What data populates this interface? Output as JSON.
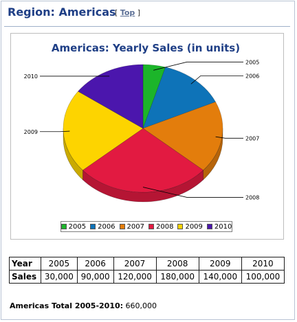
{
  "header": {
    "region_title": "Region: Americas",
    "top_link": "Top",
    "bracket_open": "[",
    "bracket_close": "]"
  },
  "chart_data": {
    "type": "pie",
    "title": "Americas: Yearly Sales (in units)",
    "categories": [
      "2005",
      "2006",
      "2007",
      "2008",
      "2009",
      "2010"
    ],
    "values": [
      30000,
      90000,
      120000,
      180000,
      140000,
      100000
    ],
    "colors": [
      "#1cb52a",
      "#0e73b8",
      "#e37d0c",
      "#e21a41",
      "#fdd400",
      "#4b16ad"
    ],
    "legend": {
      "placement": "bottom",
      "entries": [
        "2005",
        "2006",
        "2007",
        "2008",
        "2009",
        "2010"
      ]
    },
    "three_d": true
  },
  "table": {
    "row_headers": [
      "Year",
      "Sales"
    ],
    "years": [
      "2005",
      "2006",
      "2007",
      "2008",
      "2009",
      "2010"
    ],
    "sales": [
      "30,000",
      "90,000",
      "120,000",
      "180,000",
      "140,000",
      "100,000"
    ]
  },
  "total": {
    "label": "Americas Total 2005-2010:",
    "value": "660,000"
  }
}
